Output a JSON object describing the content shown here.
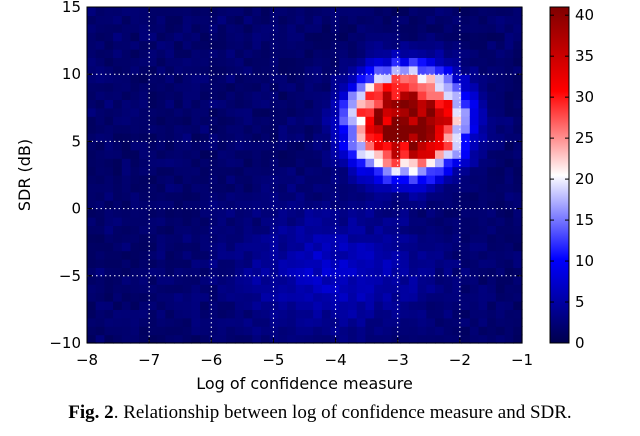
{
  "chart_data": {
    "type": "heatmap",
    "xlabel": "Log of confidence measure",
    "ylabel": "SDR (dB)",
    "xlim": [
      -8,
      -1
    ],
    "ylim": [
      -10,
      15
    ],
    "x_ticks": [
      "−8",
      "−7",
      "−6",
      "−5",
      "−4",
      "−3",
      "−2",
      "−1"
    ],
    "y_ticks": [
      "−10",
      "−5",
      "0",
      "5",
      "10",
      "15"
    ],
    "grid": "on (dotted white)",
    "colorbar": {
      "range": [
        0,
        41
      ],
      "ticks": [
        "0",
        "5",
        "10",
        "15",
        "20",
        "25",
        "30",
        "35",
        "40"
      ],
      "colormap": "seismic (dark blue – white – dark red)"
    },
    "density_regions": [
      {
        "region": "background",
        "x_range": [
          -8,
          -1
        ],
        "y_range": [
          -10,
          15
        ],
        "approx_count": 1
      },
      {
        "region": "faint lower band",
        "x_range": [
          -6,
          -2
        ],
        "y_range": [
          -9,
          0
        ],
        "approx_count": 6
      },
      {
        "region": "main cluster",
        "center_x": -2.8,
        "center_y": 6.5,
        "approx_count": 40
      },
      {
        "region": "cluster halo (white)",
        "x_range": [
          -4,
          -1.7
        ],
        "y_range": [
          1,
          12
        ],
        "approx_count": 20
      }
    ]
  },
  "caption": {
    "label": "Fig. 2",
    "text": ". Relationship between log of confidence measure and SDR."
  }
}
